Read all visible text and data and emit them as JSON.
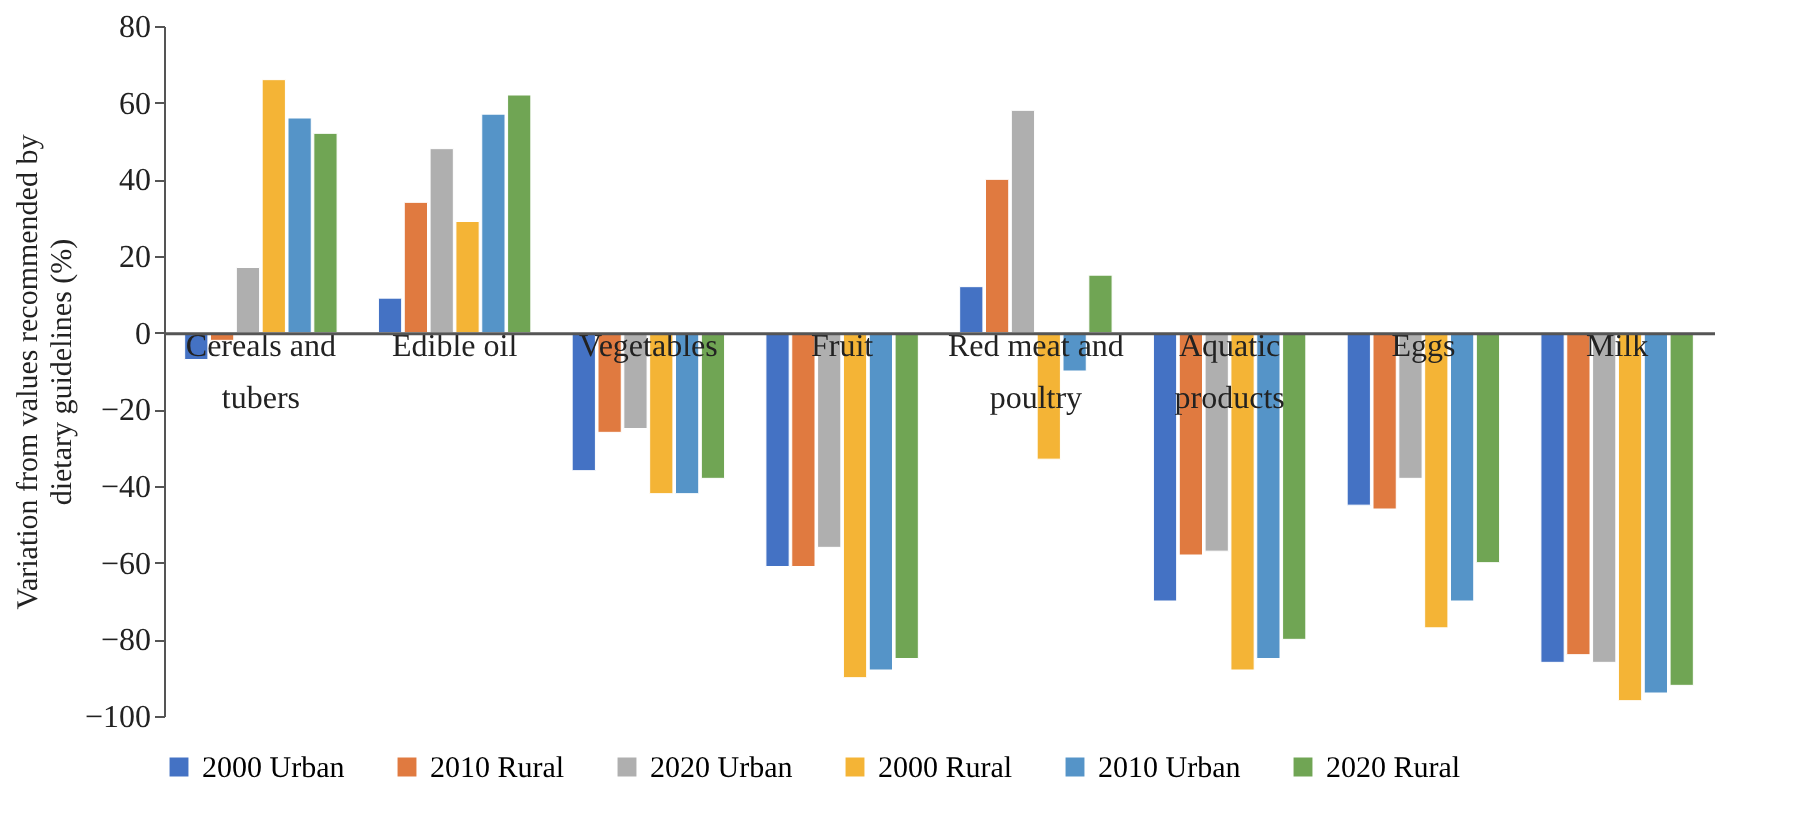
{
  "chart_data": {
    "type": "bar",
    "ylabel": "Variation from values recommended by dietary guidelines (%)",
    "categories": [
      "Cereals and tubers",
      "Edible oil",
      "Vegetables",
      "Fruit",
      "Red meat and poultry",
      "Aquatic products",
      "Eggs",
      "Milk"
    ],
    "series": [
      {
        "name": "2000 Urban",
        "color": "#4472c4",
        "values": [
          -7,
          9,
          -36,
          -61,
          12,
          -70,
          -45,
          -86
        ]
      },
      {
        "name": "2010 Rural",
        "color": "#e07a40",
        "values": [
          -2,
          34,
          -26,
          -61,
          40,
          -58,
          -46,
          -84
        ]
      },
      {
        "name": "2020 Urban",
        "color": "#afafaf",
        "values": [
          17,
          48,
          -25,
          -56,
          58,
          -57,
          -38,
          -86
        ]
      },
      {
        "name": "2000 Rural",
        "color": "#f4b436",
        "values": [
          66,
          29,
          -42,
          -90,
          -33,
          -88,
          -77,
          -96
        ]
      },
      {
        "name": "2010 Urban",
        "color": "#5594c8",
        "values": [
          56,
          57,
          -42,
          -88,
          -10,
          -85,
          -70,
          -94
        ]
      },
      {
        "name": "2020 Rural",
        "color": "#70a554",
        "values": [
          52,
          62,
          -38,
          -85,
          15,
          -80,
          -60,
          -92
        ]
      }
    ],
    "ylim": [
      -100,
      80
    ],
    "yticks": [
      -100,
      -80,
      -60,
      -40,
      -20,
      0,
      20,
      40,
      60,
      80
    ],
    "grid": false,
    "legend": "bottom"
  }
}
